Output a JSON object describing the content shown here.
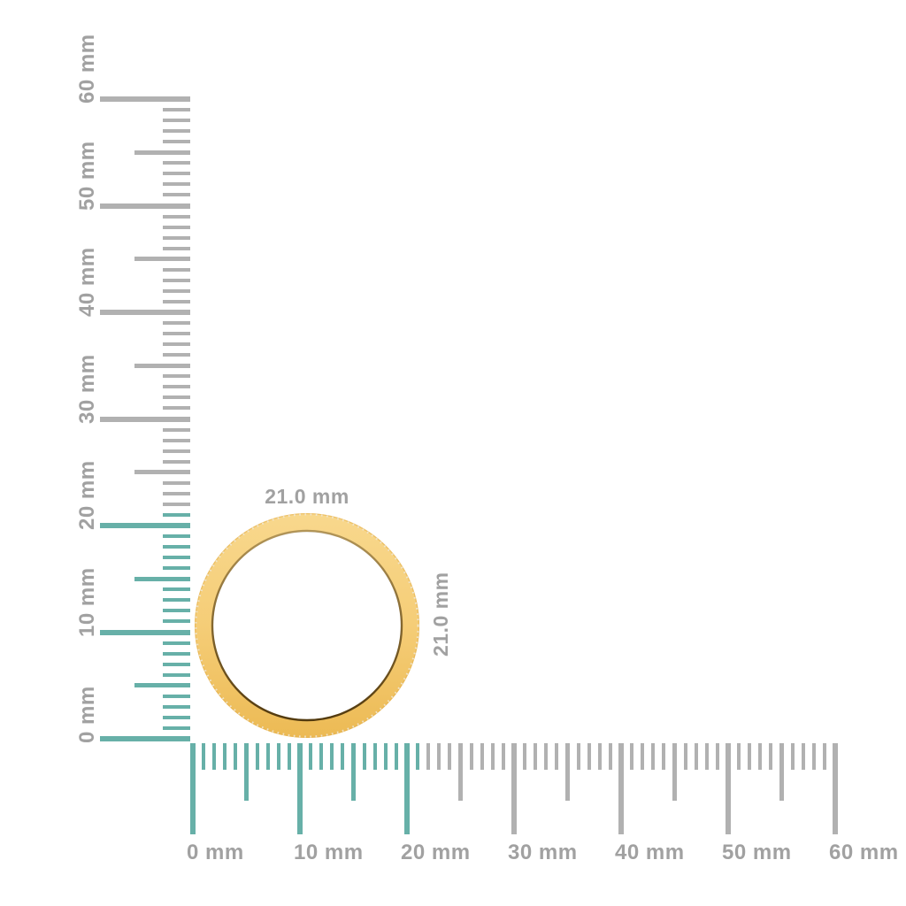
{
  "page": {
    "background": "#ffffff",
    "description": "ring size measurement diagram"
  },
  "ring": {
    "width_label": "21.0 mm",
    "height_label": "21.0 mm",
    "diameter_mm": 21.0,
    "colors": {
      "gold_light": "#f8d88d",
      "gold_mid": "#f5cd77",
      "gold_deep": "#ecba54",
      "rim": "#e3ae4b",
      "inner_shadow": "#4a330b",
      "diamond_dot": "#efe7d4"
    }
  },
  "rulers": {
    "unit": "mm",
    "min_mm": 0,
    "max_mm": 60,
    "major_every_mm": 10,
    "half_every_mm": 5,
    "highlight_extent_mm": 21,
    "colors": {
      "highlight_teal": "#67b0a8",
      "tick_gray": "#b1b1b1",
      "label_gray": "#a1a1a1"
    },
    "vertical": {
      "labels": [
        "0 mm",
        "10 mm",
        "20 mm",
        "30 mm",
        "40 mm",
        "50 mm",
        "60 mm"
      ]
    },
    "horizontal": {
      "labels": [
        "0 mm",
        "10 mm",
        "20 mm",
        "30 mm",
        "40 mm",
        "50 mm",
        "60 mm"
      ]
    }
  }
}
